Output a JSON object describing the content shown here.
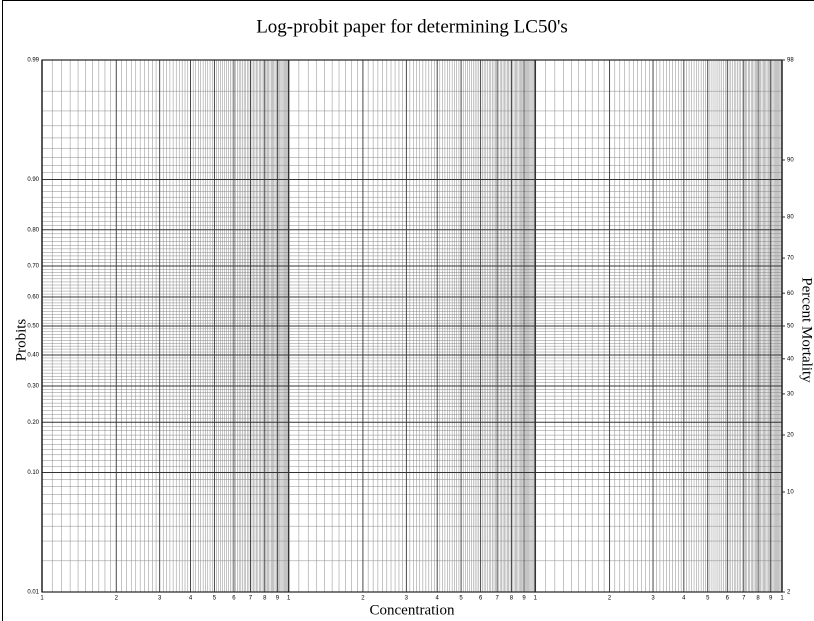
{
  "chart_data": {
    "type": "probit-paper",
    "title": "Log-probit paper for determining LC50's",
    "xlabel": "Concentration",
    "ylabel": "Probits",
    "y2label": "Percent Mortality",
    "xscale": "log",
    "yscale": "probit",
    "grid": true,
    "xlim": [
      1,
      1000
    ],
    "xticks": [
      1,
      2,
      3,
      4,
      5,
      6,
      7,
      8,
      9,
      {
        "value": 10,
        "label": "1"
      },
      {
        "value": 20,
        "label": "2"
      },
      {
        "value": 30,
        "label": "3"
      },
      {
        "value": 40,
        "label": "4"
      },
      {
        "value": 50,
        "label": "5"
      },
      {
        "value": 60,
        "label": "6"
      },
      {
        "value": 70,
        "label": "7"
      },
      {
        "value": 80,
        "label": "8"
      },
      {
        "value": 90,
        "label": "9"
      },
      {
        "value": 100,
        "label": "1"
      },
      {
        "value": 200,
        "label": "2"
      },
      {
        "value": 300,
        "label": "3"
      },
      {
        "value": 400,
        "label": "4"
      },
      {
        "value": 500,
        "label": "5"
      },
      {
        "value": 600,
        "label": "6"
      },
      {
        "value": 700,
        "label": "7"
      },
      {
        "value": 800,
        "label": "8"
      },
      {
        "value": 900,
        "label": "9"
      },
      {
        "value": 1000,
        "label": "1"
      }
    ],
    "ylim": [
      0.01,
      0.99
    ],
    "yticks": [
      0.01,
      {
        "value": 0.1,
        "label": "0.10"
      },
      {
        "value": 0.2,
        "label": "0.20"
      },
      {
        "value": 0.3,
        "label": "0.30"
      },
      {
        "value": 0.4,
        "label": "0.40"
      },
      {
        "value": 0.5,
        "label": "0.50"
      },
      {
        "value": 0.6,
        "label": "0.60"
      },
      {
        "value": 0.7,
        "label": "0.70"
      },
      {
        "value": 0.8,
        "label": "0.80"
      },
      {
        "value": 0.9,
        "label": "0.90"
      },
      0.99
    ],
    "y2lim": [
      2,
      98
    ],
    "y2ticks": [
      2,
      10,
      20,
      30,
      40,
      50,
      60,
      70,
      80,
      90,
      98
    ]
  }
}
